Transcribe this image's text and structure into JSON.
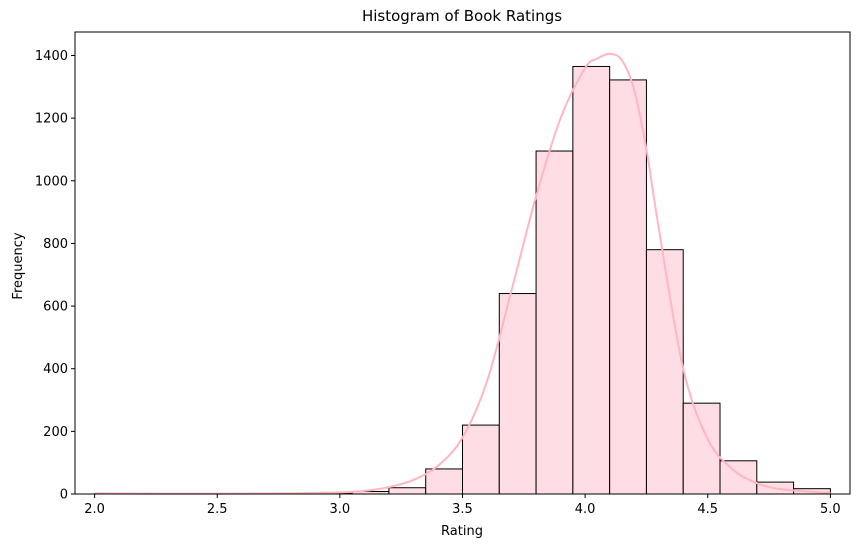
{
  "chart_data": {
    "type": "bar",
    "title": "Histogram of Book Ratings",
    "xlabel": "Rating",
    "ylabel": "Frequency",
    "xlim": [
      1.92,
      5.08
    ],
    "ylim": [
      0,
      1475
    ],
    "xticks": [
      "2.0",
      "2.5",
      "3.0",
      "3.5",
      "4.0",
      "4.5",
      "5.0"
    ],
    "yticks": [
      "0",
      "200",
      "400",
      "600",
      "800",
      "1000",
      "1200",
      "1400"
    ],
    "bin_edges": [
      2.0,
      2.15,
      2.3,
      2.45,
      2.6,
      2.75,
      2.9,
      3.05,
      3.2,
      3.35,
      3.5,
      3.65,
      3.8,
      3.95,
      4.1,
      4.25,
      4.4,
      4.55,
      4.7,
      4.85,
      5.0
    ],
    "values": [
      1,
      0,
      0,
      0,
      0,
      1,
      2,
      8,
      20,
      80,
      220,
      640,
      1095,
      1365,
      1322,
      780,
      290,
      106,
      38,
      17
    ],
    "kde": {
      "x": [
        2.0,
        2.5,
        2.8,
        3.0,
        3.1,
        3.2,
        3.3,
        3.4,
        3.5,
        3.6,
        3.7,
        3.8,
        3.9,
        4.0,
        4.05,
        4.1,
        4.15,
        4.2,
        4.25,
        4.3,
        4.4,
        4.5,
        4.6,
        4.7,
        4.8,
        5.0
      ],
      "y": [
        2,
        1,
        2,
        5,
        10,
        22,
        45,
        90,
        180,
        360,
        650,
        950,
        1200,
        1360,
        1390,
        1405,
        1385,
        1290,
        1100,
        850,
        400,
        175,
        80,
        35,
        15,
        3
      ]
    },
    "colors": {
      "bar_fill": "#ffdde4",
      "bar_edge": "#000000",
      "kde_line": "#ffb6c1"
    },
    "grid": false,
    "legend": "none"
  }
}
